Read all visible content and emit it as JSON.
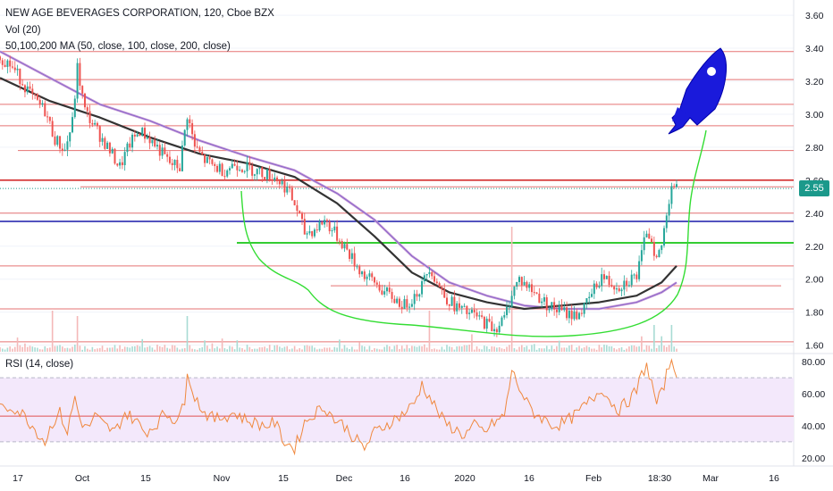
{
  "legend": {
    "symbol": "NEW AGE BEVERAGES CORPORATION, 120, Cboe BZX",
    "volume": "Vol (20)",
    "ma": "50,100,200 MA (50, close, 100, close, 200, close)",
    "rsi": "RSI (14, close)"
  },
  "last_price": "2.55",
  "chart_data": {
    "type": "candlestick",
    "x_ticks": [
      "17",
      "Oct",
      "15",
      "Nov",
      "15",
      "Dec",
      "16",
      "2020",
      "16",
      "Feb",
      "18:30",
      "Mar",
      "16"
    ],
    "y_ticks": [
      "3.60",
      "3.40",
      "3.20",
      "3.00",
      "2.80",
      "2.60",
      "2.40",
      "2.20",
      "2.00",
      "1.80",
      "1.60"
    ],
    "ylim": [
      1.56,
      3.66
    ],
    "rsi_ticks": [
      "80.00",
      "60.00",
      "40.00",
      "20.00"
    ],
    "rsi_lim": [
      16,
      84
    ],
    "rsi_band": [
      30,
      70
    ],
    "rsi_mid": 46,
    "price_path": [
      [
        0,
        3.35
      ],
      [
        4,
        3.3
      ],
      [
        8,
        3.22
      ],
      [
        13,
        3.1
      ],
      [
        18,
        3.02
      ],
      [
        22,
        2.85
      ],
      [
        26,
        2.78
      ],
      [
        29,
        2.95
      ],
      [
        31,
        3.28
      ],
      [
        34,
        3.02
      ],
      [
        38,
        2.92
      ],
      [
        43,
        2.8
      ],
      [
        48,
        2.68
      ],
      [
        52,
        2.82
      ],
      [
        56,
        2.9
      ],
      [
        60,
        2.85
      ],
      [
        64,
        2.78
      ],
      [
        68,
        2.7
      ],
      [
        72,
        2.68
      ],
      [
        75,
        3.0
      ],
      [
        78,
        2.8
      ],
      [
        82,
        2.72
      ],
      [
        86,
        2.68
      ],
      [
        90,
        2.66
      ],
      [
        94,
        2.7
      ],
      [
        98,
        2.68
      ],
      [
        102,
        2.66
      ],
      [
        106,
        2.64
      ],
      [
        110,
        2.62
      ],
      [
        115,
        2.55
      ],
      [
        119,
        2.42
      ],
      [
        122,
        2.28
      ],
      [
        126,
        2.3
      ],
      [
        130,
        2.36
      ],
      [
        134,
        2.28
      ],
      [
        138,
        2.2
      ],
      [
        142,
        2.1
      ],
      [
        146,
        2.02
      ],
      [
        150,
        1.98
      ],
      [
        154,
        1.92
      ],
      [
        158,
        1.88
      ],
      [
        162,
        1.84
      ],
      [
        166,
        1.9
      ],
      [
        169,
        1.96
      ],
      [
        172,
        2.08
      ],
      [
        175,
        1.98
      ],
      [
        178,
        1.9
      ],
      [
        182,
        1.84
      ],
      [
        186,
        1.8
      ],
      [
        190,
        1.78
      ],
      [
        194,
        1.74
      ],
      [
        198,
        1.7
      ],
      [
        202,
        1.76
      ],
      [
        205,
        1.92
      ],
      [
        208,
        2.0
      ],
      [
        211,
        1.96
      ],
      [
        214,
        1.92
      ],
      [
        218,
        1.86
      ],
      [
        222,
        1.82
      ],
      [
        226,
        1.8
      ],
      [
        230,
        1.78
      ],
      [
        234,
        1.82
      ],
      [
        238,
        1.94
      ],
      [
        241,
        2.02
      ],
      [
        244,
        1.98
      ],
      [
        248,
        1.96
      ],
      [
        252,
        2.0
      ],
      [
        255,
        2.02
      ],
      [
        257,
        2.14
      ],
      [
        259,
        2.3
      ],
      [
        261,
        2.24
      ],
      [
        263,
        2.12
      ],
      [
        265,
        2.2
      ],
      [
        267,
        2.4
      ],
      [
        269,
        2.58
      ],
      [
        271,
        2.55
      ]
    ],
    "ma50_path": [
      [
        0,
        3.22
      ],
      [
        20,
        3.08
      ],
      [
        40,
        2.98
      ],
      [
        60,
        2.86
      ],
      [
        80,
        2.76
      ],
      [
        100,
        2.7
      ],
      [
        118,
        2.62
      ],
      [
        135,
        2.46
      ],
      [
        150,
        2.26
      ],
      [
        165,
        2.04
      ],
      [
        180,
        1.92
      ],
      [
        195,
        1.86
      ],
      [
        210,
        1.82
      ],
      [
        225,
        1.84
      ],
      [
        240,
        1.86
      ],
      [
        255,
        1.9
      ],
      [
        265,
        1.98
      ],
      [
        271,
        2.08
      ]
    ],
    "ma100_path": [
      [
        0,
        3.38
      ],
      [
        20,
        3.22
      ],
      [
        40,
        3.06
      ],
      [
        60,
        2.96
      ],
      [
        80,
        2.84
      ],
      [
        100,
        2.74
      ],
      [
        118,
        2.66
      ],
      [
        135,
        2.52
      ],
      [
        150,
        2.36
      ],
      [
        165,
        2.14
      ],
      [
        180,
        1.98
      ],
      [
        195,
        1.9
      ],
      [
        210,
        1.84
      ],
      [
        225,
        1.82
      ],
      [
        240,
        1.82
      ],
      [
        255,
        1.86
      ],
      [
        265,
        1.92
      ],
      [
        271,
        1.98
      ]
    ],
    "rsi_path": [
      [
        0,
        50
      ],
      [
        5,
        52
      ],
      [
        10,
        46
      ],
      [
        15,
        36
      ],
      [
        18,
        30
      ],
      [
        21,
        42
      ],
      [
        24,
        48
      ],
      [
        27,
        36
      ],
      [
        30,
        58
      ],
      [
        32,
        44
      ],
      [
        35,
        38
      ],
      [
        38,
        46
      ],
      [
        42,
        40
      ],
      [
        46,
        36
      ],
      [
        50,
        48
      ],
      [
        54,
        44
      ],
      [
        58,
        36
      ],
      [
        62,
        40
      ],
      [
        66,
        48
      ],
      [
        70,
        44
      ],
      [
        74,
        52
      ],
      [
        75,
        76
      ],
      [
        78,
        58
      ],
      [
        82,
        48
      ],
      [
        86,
        44
      ],
      [
        90,
        46
      ],
      [
        94,
        48
      ],
      [
        98,
        44
      ],
      [
        102,
        42
      ],
      [
        106,
        40
      ],
      [
        110,
        42
      ],
      [
        114,
        30
      ],
      [
        118,
        26
      ],
      [
        122,
        42
      ],
      [
        126,
        48
      ],
      [
        130,
        52
      ],
      [
        134,
        44
      ],
      [
        138,
        40
      ],
      [
        142,
        32
      ],
      [
        146,
        26
      ],
      [
        150,
        36
      ],
      [
        154,
        40
      ],
      [
        158,
        44
      ],
      [
        162,
        48
      ],
      [
        166,
        54
      ],
      [
        169,
        66
      ],
      [
        172,
        58
      ],
      [
        175,
        50
      ],
      [
        178,
        42
      ],
      [
        182,
        38
      ],
      [
        186,
        34
      ],
      [
        190,
        40
      ],
      [
        194,
        36
      ],
      [
        198,
        42
      ],
      [
        202,
        46
      ],
      [
        205,
        74
      ],
      [
        208,
        64
      ],
      [
        211,
        54
      ],
      [
        214,
        48
      ],
      [
        218,
        44
      ],
      [
        222,
        40
      ],
      [
        226,
        42
      ],
      [
        230,
        46
      ],
      [
        234,
        52
      ],
      [
        238,
        58
      ],
      [
        241,
        64
      ],
      [
        244,
        56
      ],
      [
        248,
        50
      ],
      [
        252,
        56
      ],
      [
        255,
        62
      ],
      [
        257,
        72
      ],
      [
        259,
        78
      ],
      [
        261,
        66
      ],
      [
        263,
        54
      ],
      [
        265,
        60
      ],
      [
        267,
        72
      ],
      [
        269,
        82
      ],
      [
        271,
        74
      ]
    ]
  }
}
